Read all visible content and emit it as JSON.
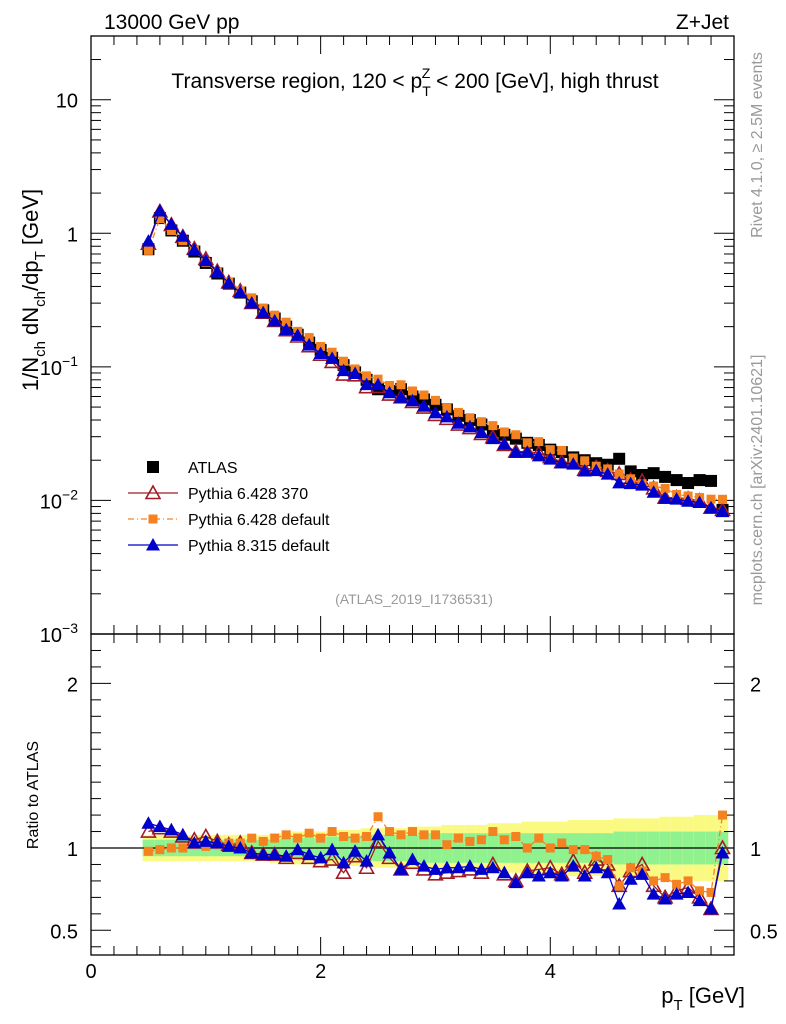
{
  "header": {
    "left": "13000 GeV pp",
    "right": "Z+Jet"
  },
  "side_labels": {
    "rivet": "Rivet 4.1.0, ≥ 2.5M events",
    "mcplots": "mcplots.cern.ch [arXiv:2401.10621]"
  },
  "chart_data": {
    "type": "scatter",
    "title": "Transverse region, 120 < p_T^Z < 200 [GeV], high thrust",
    "title_parts": {
      "pre": "Transverse region, 120 < p",
      "sub": "T",
      "sup": "Z",
      "post": " < 200 [GeV], high thrust"
    },
    "analysis_tag": "(ATLAS_2019_I1736531)",
    "xlabel": "p_T [GeV]",
    "xlabel_parts": {
      "main": "p",
      "sub": "T",
      "unit": " [GeV]"
    },
    "ylabel": "1/N_ch dN_ch/dp_T [GeV]",
    "ylabel_parts": [
      "1/N",
      "ch",
      " dN",
      "ch",
      "/dp",
      "T",
      " [GeV]"
    ],
    "ratio_ylabel": "Ratio to ATLAS",
    "xlim": [
      0,
      5.6
    ],
    "ylim": [
      0.001,
      30
    ],
    "ratio_ylim": [
      0.35,
      2.3
    ],
    "yscale": "log",
    "x_ticks": [
      0,
      2,
      4
    ],
    "y_ticks": [
      {
        "value": 10,
        "base": "10",
        "exp": ""
      },
      {
        "value": 1,
        "base": "1",
        "exp": ""
      },
      {
        "value": 0.1,
        "base": "10",
        "exp": "−1"
      },
      {
        "value": 0.01,
        "base": "10",
        "exp": "−2"
      },
      {
        "value": 0.001,
        "base": "10",
        "exp": "−3"
      }
    ],
    "ratio_ticks": [
      0.5,
      1,
      2
    ],
    "x": [
      0.5,
      0.6,
      0.7,
      0.8,
      0.9,
      1.0,
      1.1,
      1.2,
      1.3,
      1.4,
      1.5,
      1.6,
      1.7,
      1.8,
      1.9,
      2.0,
      2.1,
      2.2,
      2.3,
      2.4,
      2.5,
      2.6,
      2.7,
      2.8,
      2.9,
      3.0,
      3.1,
      3.2,
      3.3,
      3.4,
      3.5,
      3.6,
      3.7,
      3.8,
      3.9,
      4.0,
      4.1,
      4.2,
      4.3,
      4.4,
      4.5,
      4.6,
      4.7,
      4.8,
      4.9,
      5.0,
      5.1,
      5.2,
      5.3,
      5.4,
      5.5
    ],
    "legend_position": "lower-left",
    "series": [
      {
        "name": "ATLAS",
        "marker": "square",
        "color": "#000000",
        "values": [
          0.76,
          1.3,
          1.05,
          0.88,
          0.73,
          0.6,
          0.5,
          0.42,
          0.36,
          0.31,
          0.265,
          0.23,
          0.2,
          0.174,
          0.152,
          0.134,
          0.117,
          0.103,
          0.091,
          0.08,
          0.068,
          0.066,
          0.068,
          0.06,
          0.057,
          0.052,
          0.048,
          0.043,
          0.04,
          0.037,
          0.033,
          0.031,
          0.029,
          0.027,
          0.026,
          0.024,
          0.023,
          0.021,
          0.02,
          0.019,
          0.0185,
          0.0205,
          0.0165,
          0.0155,
          0.016,
          0.015,
          0.0142,
          0.0135,
          0.0142,
          0.014,
          0.0085
        ],
        "band_stat": [
          0.05,
          0.05,
          0.05,
          0.05,
          0.05,
          0.05,
          0.05,
          0.05,
          0.05,
          0.05,
          0.05,
          0.05,
          0.06,
          0.06,
          0.06,
          0.07,
          0.07,
          0.07,
          0.07,
          0.08,
          0.08,
          0.08,
          0.08,
          0.08,
          0.09,
          0.09,
          0.09,
          0.09,
          0.09,
          0.09,
          0.09,
          0.09,
          0.09,
          0.09,
          0.09,
          0.09,
          0.09,
          0.09,
          0.09,
          0.09,
          0.09,
          0.1,
          0.1,
          0.1,
          0.1,
          0.1,
          0.1,
          0.1,
          0.1,
          0.1,
          0.1
        ],
        "band_tot": [
          0.08,
          0.08,
          0.08,
          0.08,
          0.08,
          0.08,
          0.08,
          0.08,
          0.08,
          0.08,
          0.08,
          0.09,
          0.09,
          0.1,
          0.1,
          0.1,
          0.11,
          0.11,
          0.11,
          0.12,
          0.12,
          0.12,
          0.12,
          0.13,
          0.13,
          0.13,
          0.14,
          0.14,
          0.14,
          0.14,
          0.15,
          0.15,
          0.15,
          0.16,
          0.16,
          0.16,
          0.16,
          0.17,
          0.17,
          0.17,
          0.17,
          0.18,
          0.18,
          0.18,
          0.18,
          0.19,
          0.19,
          0.19,
          0.2,
          0.2,
          0.2
        ]
      },
      {
        "name": "Pythia 6.428 370",
        "marker": "triangle-open",
        "color": "#a01c24",
        "ratio": [
          1.1,
          1.12,
          1.1,
          1.07,
          1.05,
          1.07,
          1.04,
          1.02,
          1.03,
          0.97,
          0.96,
          0.96,
          0.94,
          0.97,
          0.94,
          0.92,
          0.93,
          0.85,
          0.95,
          0.88,
          1.04,
          0.94,
          0.87,
          0.91,
          0.87,
          0.84,
          0.85,
          0.86,
          0.87,
          0.85,
          0.9,
          0.84,
          0.8,
          0.86,
          0.87,
          0.88,
          0.84,
          0.92,
          0.85,
          0.93,
          0.9,
          0.77,
          0.86,
          0.9,
          0.77,
          0.7,
          0.74,
          0.76,
          0.7,
          0.63,
          1.0
        ]
      },
      {
        "name": "Pythia 6.428 default",
        "marker": "square-small",
        "color": "#f58220",
        "ratio": [
          0.98,
          0.99,
          1.0,
          1.0,
          1.02,
          1.01,
          1.02,
          1.03,
          1.03,
          1.06,
          1.04,
          1.06,
          1.08,
          1.06,
          1.09,
          1.06,
          1.1,
          1.07,
          1.06,
          1.07,
          1.19,
          1.1,
          1.08,
          1.1,
          1.08,
          1.08,
          1.02,
          1.06,
          1.04,
          1.05,
          1.1,
          1.05,
          1.07,
          1.0,
          1.06,
          1.0,
          1.03,
          0.99,
          0.99,
          0.95,
          0.93,
          0.77,
          0.88,
          0.86,
          0.8,
          0.82,
          0.78,
          0.8,
          0.74,
          0.73,
          1.2
        ]
      },
      {
        "name": "Pythia 8.315 default",
        "marker": "triangle",
        "color": "#0000cc",
        "ratio": [
          1.15,
          1.13,
          1.11,
          1.08,
          1.03,
          1.04,
          1.03,
          1.01,
          1.0,
          0.97,
          0.96,
          0.96,
          0.95,
          0.99,
          0.96,
          0.94,
          0.99,
          0.91,
          0.98,
          0.92,
          1.08,
          0.97,
          0.87,
          0.93,
          0.89,
          0.87,
          0.88,
          0.88,
          0.89,
          0.87,
          0.88,
          0.85,
          0.79,
          0.85,
          0.83,
          0.85,
          0.83,
          0.89,
          0.83,
          0.88,
          0.85,
          0.66,
          0.81,
          0.84,
          0.72,
          0.69,
          0.72,
          0.73,
          0.68,
          0.63,
          0.97
        ]
      }
    ]
  }
}
